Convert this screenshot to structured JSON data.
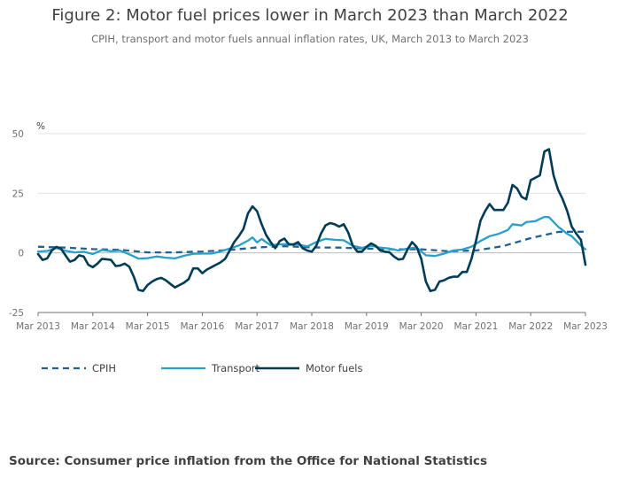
{
  "chart_data": {
    "type": "line",
    "title": "Figure 2: Motor fuel prices lower in March 2023 than March 2022",
    "subtitle": "CPIH, transport and motor fuels annual inflation rates, UK, March 2013 to March 2023",
    "ylabel": "%",
    "ylim": [
      -25,
      50
    ],
    "yticks": [
      -25,
      0,
      25,
      50
    ],
    "xticks": [
      "Mar 2013",
      "Mar 2014",
      "Mar 2015",
      "Mar 2016",
      "Mar 2017",
      "Mar 2018",
      "Mar 2019",
      "Mar 2020",
      "Mar 2021",
      "Mar 2022",
      "Mar 2023"
    ],
    "grid": "horizontal",
    "legend": "bottom-left",
    "series": [
      {
        "name": "CPIH",
        "color": "#206095",
        "dash": "dashed",
        "points": [
          [
            "Mar 2013",
            2.6
          ],
          [
            "Sep 2013",
            2.2
          ],
          [
            "Mar 2014",
            1.6
          ],
          [
            "Sep 2014",
            1.3
          ],
          [
            "Mar 2015",
            0.2
          ],
          [
            "Sep 2015",
            0.2
          ],
          [
            "Mar 2016",
            0.6
          ],
          [
            "Sep 2016",
            1.2
          ],
          [
            "Mar 2017",
            2.3
          ],
          [
            "Sep 2017",
            2.8
          ],
          [
            "Mar 2018",
            2.3
          ],
          [
            "Sep 2018",
            2.2
          ],
          [
            "Mar 2019",
            1.8
          ],
          [
            "Sep 2019",
            1.5
          ],
          [
            "Mar 2020",
            1.5
          ],
          [
            "Sep 2020",
            0.7
          ],
          [
            "Mar 2021",
            1.0
          ],
          [
            "Sep 2021",
            2.9
          ],
          [
            "Mar 2022",
            6.2
          ],
          [
            "Sep 2022",
            8.8
          ],
          [
            "Mar 2023",
            8.9
          ]
        ]
      },
      {
        "name": "Transport",
        "color": "#27a0cc",
        "dash": "solid",
        "points": [
          [
            "Mar 2013",
            0.6
          ],
          [
            "May 2013",
            0.8
          ],
          [
            "Jul 2013",
            2.0
          ],
          [
            "Sep 2013",
            0.9
          ],
          [
            "Nov 2013",
            0.2
          ],
          [
            "Jan 2014",
            0.5
          ],
          [
            "Mar 2014",
            -0.5
          ],
          [
            "May 2014",
            1.2
          ],
          [
            "Jul 2014",
            0.7
          ],
          [
            "Sep 2014",
            0.9
          ],
          [
            "Nov 2014",
            -0.6
          ],
          [
            "Jan 2015",
            -2.4
          ],
          [
            "Mar 2015",
            -2.2
          ],
          [
            "May 2015",
            -1.5
          ],
          [
            "Jul 2015",
            -2.0
          ],
          [
            "Sep 2015",
            -2.3
          ],
          [
            "Nov 2015",
            -1.2
          ],
          [
            "Jan 2016",
            -0.4
          ],
          [
            "Mar 2016",
            -0.3
          ],
          [
            "May 2016",
            -0.3
          ],
          [
            "Jul 2016",
            0.6
          ],
          [
            "Sep 2016",
            1.8
          ],
          [
            "Nov 2016",
            3.1
          ],
          [
            "Jan 2017",
            5.1
          ],
          [
            "Feb 2017",
            6.5
          ],
          [
            "Mar 2017",
            4.4
          ],
          [
            "Apr 2017",
            5.8
          ],
          [
            "Jun 2017",
            3.2
          ],
          [
            "Aug 2017",
            3.6
          ],
          [
            "Oct 2017",
            3.7
          ],
          [
            "Dec 2017",
            3.5
          ],
          [
            "Feb 2018",
            2.7
          ],
          [
            "Apr 2018",
            4.5
          ],
          [
            "Jun 2018",
            5.9
          ],
          [
            "Aug 2018",
            5.5
          ],
          [
            "Oct 2018",
            5.3
          ],
          [
            "Dec 2018",
            3.0
          ],
          [
            "Feb 2019",
            2.1
          ],
          [
            "Apr 2019",
            3.0
          ],
          [
            "Jun 2019",
            2.2
          ],
          [
            "Aug 2019",
            1.8
          ],
          [
            "Oct 2019",
            1.0
          ],
          [
            "Dec 2019",
            1.8
          ],
          [
            "Feb 2020",
            2.3
          ],
          [
            "Apr 2020",
            -1.0
          ],
          [
            "Jun 2020",
            -1.3
          ],
          [
            "Aug 2020",
            -0.3
          ],
          [
            "Oct 2020",
            1.0
          ],
          [
            "Dec 2020",
            1.4
          ],
          [
            "Feb 2021",
            2.6
          ],
          [
            "Apr 2021",
            5.0
          ],
          [
            "Jun 2021",
            7.0
          ],
          [
            "Aug 2021",
            8.0
          ],
          [
            "Oct 2021",
            9.6
          ],
          [
            "Nov 2021",
            12.0
          ],
          [
            "Jan 2022",
            11.5
          ],
          [
            "Feb 2022",
            12.9
          ],
          [
            "Apr 2022",
            13.3
          ],
          [
            "Jun 2022",
            15.1
          ],
          [
            "Jul 2022",
            15.0
          ],
          [
            "Sep 2022",
            11.0
          ],
          [
            "Nov 2022",
            8.0
          ],
          [
            "Dec 2022",
            7.0
          ],
          [
            "Feb 2023",
            3.0
          ],
          [
            "Mar 2023",
            1.5
          ]
        ]
      },
      {
        "name": "Motor fuels",
        "color": "#003c57",
        "dash": "solid",
        "points": [
          [
            "Mar 2013",
            -0.5
          ],
          [
            "Apr 2013",
            -3.0
          ],
          [
            "May 2013",
            -2.3
          ],
          [
            "Jun 2013",
            1.0
          ],
          [
            "Jul 2013",
            2.5
          ],
          [
            "Aug 2013",
            1.8
          ],
          [
            "Sep 2013",
            -1.0
          ],
          [
            "Oct 2013",
            -3.7
          ],
          [
            "Nov 2013",
            -3.0
          ],
          [
            "Dec 2013",
            -1.0
          ],
          [
            "Jan 2014",
            -1.5
          ],
          [
            "Feb 2014",
            -5.0
          ],
          [
            "Mar 2014",
            -6.0
          ],
          [
            "Apr 2014",
            -4.5
          ],
          [
            "May 2014",
            -2.5
          ],
          [
            "Jun 2014",
            -2.7
          ],
          [
            "Jul 2014",
            -3.0
          ],
          [
            "Aug 2014",
            -5.5
          ],
          [
            "Sep 2014",
            -5.3
          ],
          [
            "Oct 2014",
            -4.5
          ],
          [
            "Nov 2014",
            -5.8
          ],
          [
            "Dec 2014",
            -10.0
          ],
          [
            "Jan 2015",
            -15.5
          ],
          [
            "Feb 2015",
            -16.0
          ],
          [
            "Mar 2015",
            -13.5
          ],
          [
            "Apr 2015",
            -12.0
          ],
          [
            "May 2015",
            -11.0
          ],
          [
            "Jun 2015",
            -10.5
          ],
          [
            "Jul 2015",
            -11.5
          ],
          [
            "Aug 2015",
            -13.0
          ],
          [
            "Sep 2015",
            -14.5
          ],
          [
            "Oct 2015",
            -13.5
          ],
          [
            "Nov 2015",
            -12.5
          ],
          [
            "Dec 2015",
            -11.0
          ],
          [
            "Jan 2016",
            -6.5
          ],
          [
            "Feb 2016",
            -6.5
          ],
          [
            "Mar 2016",
            -8.5
          ],
          [
            "Apr 2016",
            -7.0
          ],
          [
            "May 2016",
            -6.0
          ],
          [
            "Jun 2016",
            -5.0
          ],
          [
            "Jul 2016",
            -4.0
          ],
          [
            "Aug 2016",
            -2.5
          ],
          [
            "Sep 2016",
            1.0
          ],
          [
            "Oct 2016",
            4.5
          ],
          [
            "Nov 2016",
            7.0
          ],
          [
            "Dec 2016",
            10.0
          ],
          [
            "Jan 2017",
            16.5
          ],
          [
            "Feb 2017",
            19.5
          ],
          [
            "Mar 2017",
            17.5
          ],
          [
            "Apr 2017",
            12.0
          ],
          [
            "May 2017",
            7.5
          ],
          [
            "Jun 2017",
            4.5
          ],
          [
            "Jul 2017",
            2.0
          ],
          [
            "Aug 2017",
            5.0
          ],
          [
            "Sep 2017",
            6.0
          ],
          [
            "Oct 2017",
            3.5
          ],
          [
            "Nov 2017",
            3.5
          ],
          [
            "Dec 2017",
            4.5
          ],
          [
            "Jan 2018",
            2.0
          ],
          [
            "Feb 2018",
            1.0
          ],
          [
            "Mar 2018",
            0.5
          ],
          [
            "Apr 2018",
            3.0
          ],
          [
            "May 2018",
            8.0
          ],
          [
            "Jun 2018",
            11.5
          ],
          [
            "Jul 2018",
            12.5
          ],
          [
            "Aug 2018",
            12.0
          ],
          [
            "Sep 2018",
            11.0
          ],
          [
            "Oct 2018",
            12.0
          ],
          [
            "Nov 2018",
            8.5
          ],
          [
            "Dec 2018",
            3.0
          ],
          [
            "Jan 2019",
            0.5
          ],
          [
            "Feb 2019",
            0.5
          ],
          [
            "Mar 2019",
            2.5
          ],
          [
            "Apr 2019",
            4.0
          ],
          [
            "May 2019",
            3.0
          ],
          [
            "Jun 2019",
            1.0
          ],
          [
            "Jul 2019",
            0.5
          ],
          [
            "Aug 2019",
            0.3
          ],
          [
            "Sep 2019",
            -1.5
          ],
          [
            "Oct 2019",
            -2.8
          ],
          [
            "Nov 2019",
            -2.5
          ],
          [
            "Dec 2019",
            1.5
          ],
          [
            "Jan 2020",
            4.5
          ],
          [
            "Feb 2020",
            2.5
          ],
          [
            "Mar 2020",
            -2.5
          ],
          [
            "Apr 2020",
            -12.0
          ],
          [
            "May 2020",
            -16.0
          ],
          [
            "Jun 2020",
            -15.5
          ],
          [
            "Jul 2020",
            -12.0
          ],
          [
            "Aug 2020",
            -11.5
          ],
          [
            "Sep 2020",
            -10.5
          ],
          [
            "Oct 2020",
            -10.0
          ],
          [
            "Nov 2020",
            -10.0
          ],
          [
            "Dec 2020",
            -8.0
          ],
          [
            "Jan 2021",
            -8.0
          ],
          [
            "Feb 2021",
            -2.5
          ],
          [
            "Mar 2021",
            5.0
          ],
          [
            "Apr 2021",
            13.5
          ],
          [
            "May 2021",
            17.5
          ],
          [
            "Jun 2021",
            20.5
          ],
          [
            "Jul 2021",
            18.0
          ],
          [
            "Aug 2021",
            18.0
          ],
          [
            "Sep 2021",
            18.0
          ],
          [
            "Oct 2021",
            21.0
          ],
          [
            "Nov 2021",
            28.5
          ],
          [
            "Dec 2021",
            27.0
          ],
          [
            "Jan 2022",
            23.5
          ],
          [
            "Feb 2022",
            22.5
          ],
          [
            "Mar 2022",
            30.5
          ],
          [
            "Apr 2022",
            31.5
          ],
          [
            "May 2022",
            32.5
          ],
          [
            "Jun 2022",
            42.5
          ],
          [
            "Jul 2022",
            43.5
          ],
          [
            "Aug 2022",
            32.5
          ],
          [
            "Sep 2022",
            26.5
          ],
          [
            "Oct 2022",
            22.5
          ],
          [
            "Nov 2022",
            17.5
          ],
          [
            "Dec 2022",
            11.0
          ],
          [
            "Jan 2023",
            8.0
          ],
          [
            "Feb 2023",
            5.5
          ],
          [
            "Mar 2023",
            -5.0
          ]
        ]
      }
    ],
    "source": "Source: Consumer price inflation from the Office for National Statistics"
  }
}
